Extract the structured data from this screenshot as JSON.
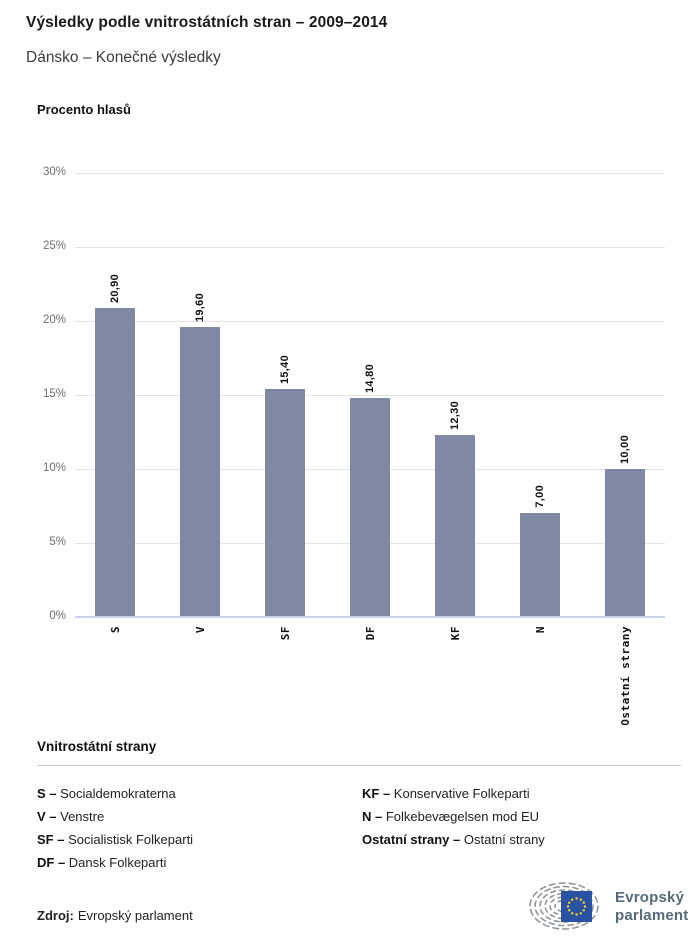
{
  "header": {
    "title": "Výsledky podle vnitrostátních stran – 2009–2014",
    "subtitle": "Dánsko – Konečné výsledky"
  },
  "chart_data": {
    "type": "bar",
    "title": "Výsledky podle vnitrostátních stran – 2009–2014",
    "subtitle": "Dánsko – Konečné výsledky",
    "ylabel": "Procento hlasů",
    "xlabel": "",
    "categories": [
      "S",
      "V",
      "SF",
      "DF",
      "KF",
      "N",
      "Ostatní strany"
    ],
    "values": [
      20.9,
      19.6,
      15.4,
      14.8,
      12.3,
      7.0,
      10.0
    ],
    "value_labels": [
      "20,90",
      "19,60",
      "15,40",
      "14,80",
      "12,30",
      "7,00",
      "10,00"
    ],
    "yticks": [
      0,
      5,
      10,
      15,
      20,
      25,
      30
    ],
    "ytick_labels": [
      "0%",
      "5%",
      "10%",
      "15%",
      "20%",
      "25%",
      "30%"
    ],
    "ylim": [
      0,
      30
    ],
    "grid": true,
    "legend_position": "none",
    "bar_color": "#8089a4"
  },
  "legend": {
    "heading": "Vnitrostátní strany",
    "columns": [
      [
        {
          "abbr": "S –",
          "name": "Socialdemokraterna"
        },
        {
          "abbr": "V –",
          "name": "Venstre"
        },
        {
          "abbr": "SF –",
          "name": "Socialistisk Folkeparti"
        },
        {
          "abbr": "DF –",
          "name": "Dansk Folkeparti"
        }
      ],
      [
        {
          "abbr": "KF –",
          "name": "Konservative Folkeparti"
        },
        {
          "abbr": "N –",
          "name": "Folkebevægelsen mod EU"
        },
        {
          "abbr": "Ostatní strany –",
          "name": "Ostatní strany"
        }
      ]
    ]
  },
  "footer": {
    "source_label": "Zdroj:",
    "source_value": "Evropský parlament",
    "logo_line1": "Evropský",
    "logo_line2": "parlament"
  },
  "colors": {
    "bar": "#8089a4",
    "gridline": "#e4e4e4",
    "axis_line": "#ccd3e8",
    "eu_blue": "#2952a3",
    "eu_star_yellow": "#fdd31b",
    "logo_gray": "#8a9095",
    "logo_text": "#566a7a"
  }
}
